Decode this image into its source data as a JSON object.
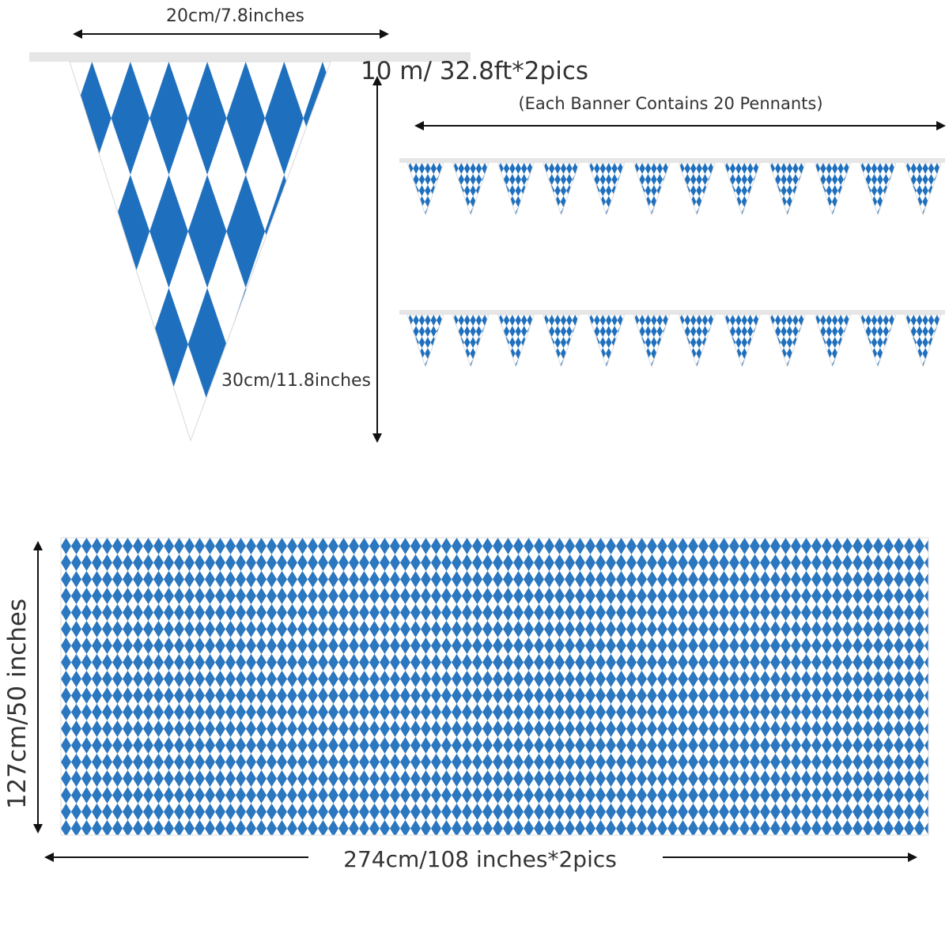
{
  "pennant": {
    "width_label": "20cm/7.8inches",
    "height_label": "30cm/11.8inches"
  },
  "banner": {
    "length_label": "10 m/ 32.8ft*2pics",
    "note": "(Each Banner Contains 20 Pennants)"
  },
  "tablecloth": {
    "width_label": "274cm/108 inches*2pics",
    "height_label": "127cm/50 inches"
  },
  "colors": {
    "blue": "#1e6fbd",
    "white": "#ffffff",
    "cord": "#e8e8e8",
    "text": "#333333",
    "arrow": "#111111"
  },
  "icons": [
    "dimension-arrow",
    "pennant-flag",
    "diamond-pattern-cloth"
  ]
}
